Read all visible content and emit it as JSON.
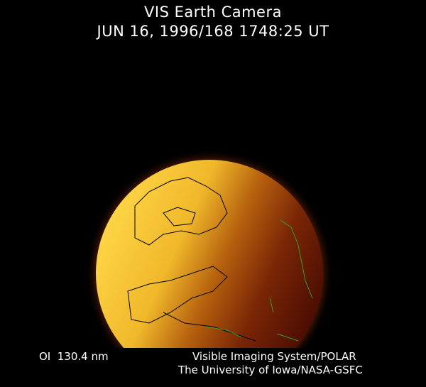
{
  "header": {
    "title": "VIS Earth Camera",
    "timestamp": "JUN 16, 1996/168 1748:25 UT"
  },
  "footer": {
    "band": "OI  130.4 nm",
    "instrument": "Visible Imaging System/POLAR",
    "institution": "The University of Iowa/NASA-GSFC"
  },
  "colors": {
    "background": "#000000",
    "dayside": "#f5d040",
    "nightside": "#5a1004",
    "coastline_day": "#000000",
    "coastline_night": "#2fa02f"
  }
}
